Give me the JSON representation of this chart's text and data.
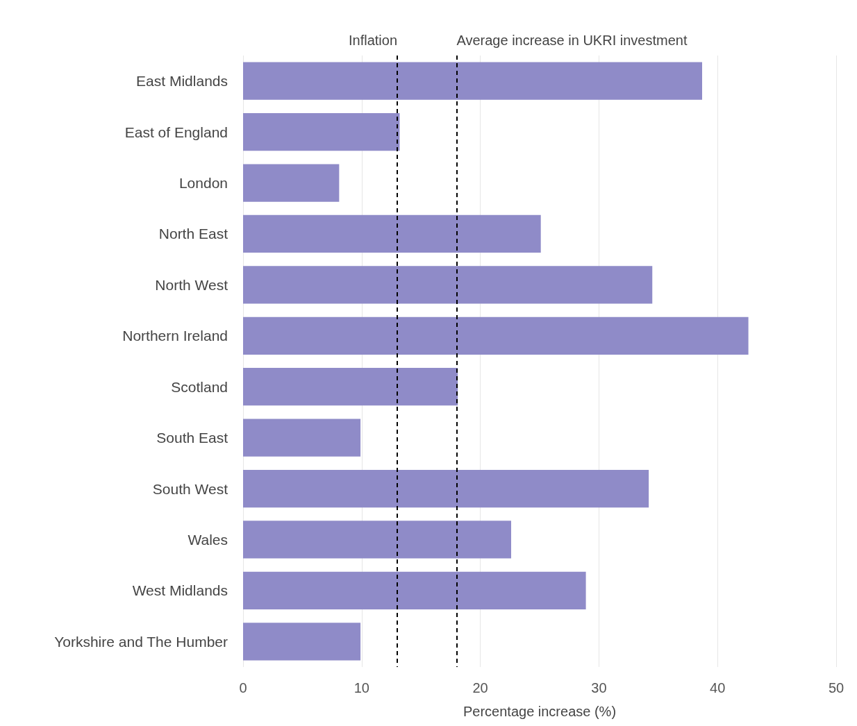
{
  "chart_data": {
    "type": "bar",
    "orientation": "horizontal",
    "xlabel": "Percentage increase (%)",
    "categories": [
      "East Midlands",
      "East of England",
      "London",
      "North East",
      "North West",
      "Northern Ireland",
      "Scotland",
      "South East",
      "South West",
      "Wales",
      "West Midlands",
      "Yorkshire and The Humber"
    ],
    "values": [
      38.7,
      13.2,
      8.1,
      25.1,
      34.5,
      42.6,
      18.1,
      9.9,
      34.2,
      22.6,
      28.9,
      9.9
    ],
    "color": "#8f8bc8",
    "xlim": [
      0,
      50
    ],
    "xticks": [
      0,
      10,
      20,
      30,
      40,
      50
    ],
    "grid": "x",
    "ref_lines": [
      {
        "axis": "x",
        "value": 13,
        "label": "Inflation",
        "color": "#000000",
        "line_style": "dashed"
      },
      {
        "axis": "x",
        "value": 18,
        "label": "Average increase in UKRI investment",
        "color": "#000000",
        "line_style": "dashed"
      }
    ]
  }
}
